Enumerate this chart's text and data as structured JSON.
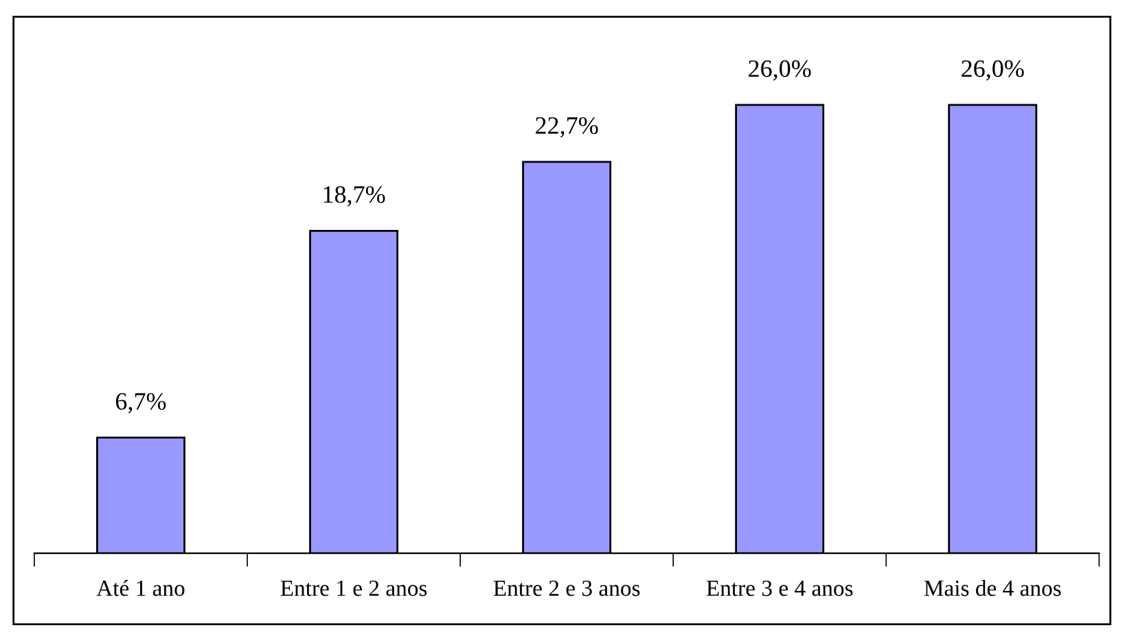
{
  "chart_data": {
    "type": "bar",
    "categories": [
      "Até 1 ano",
      "Entre 1 e 2 anos",
      "Entre 2 e 3 anos",
      "Entre 3 e 4 anos",
      "Mais de 4 anos"
    ],
    "values": [
      6.7,
      18.7,
      22.7,
      26.0,
      26.0
    ],
    "value_labels": [
      "6,7%",
      "18,7%",
      "22,7%",
      "26,0%",
      "26,0%"
    ],
    "color": "#9999ff",
    "grid": false,
    "legend": false
  }
}
